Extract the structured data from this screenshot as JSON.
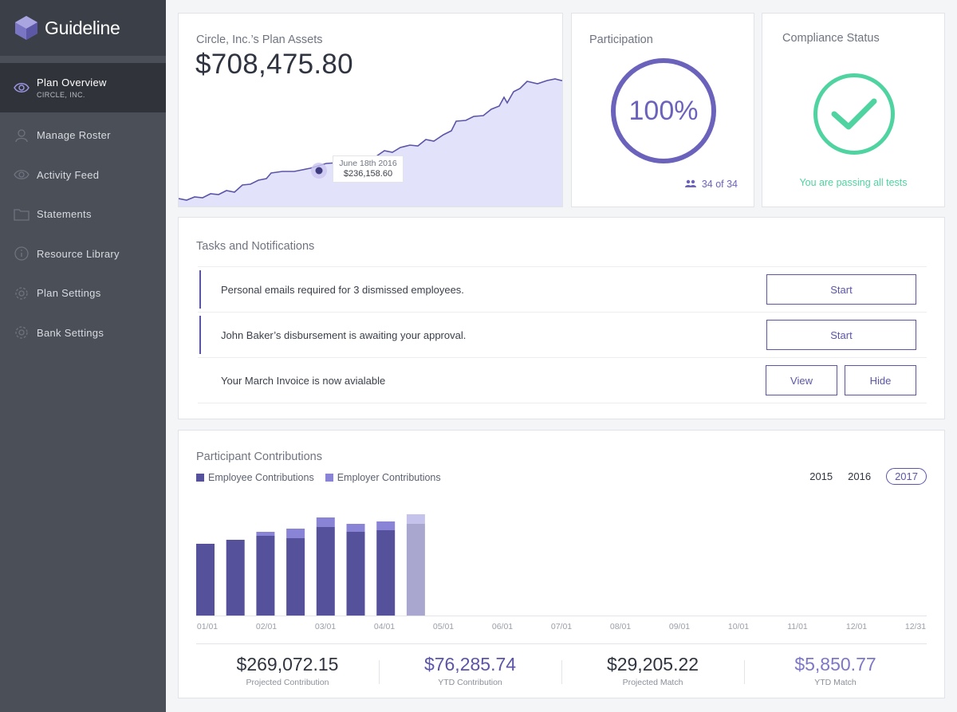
{
  "brand": {
    "name": "Guideline"
  },
  "sidebar": {
    "items": [
      {
        "label": "Plan Overview",
        "sub": "CIRCLE, INC.",
        "icon": "eye-icon",
        "active": true
      },
      {
        "label": "Manage Roster",
        "icon": "person-icon"
      },
      {
        "label": "Activity Feed",
        "icon": "eye-icon"
      },
      {
        "label": "Statements",
        "icon": "folder-icon"
      },
      {
        "label": "Resource Library",
        "icon": "info-icon"
      },
      {
        "label": "Plan Settings",
        "icon": "gear-icon"
      },
      {
        "label": "Bank Settings",
        "icon": "gear-icon"
      }
    ]
  },
  "assets": {
    "title": "Circle, Inc.’s Plan Assets",
    "value": "$708,475.80",
    "tooltip": {
      "date": "June 18th 2016",
      "value": "$236,158.60"
    }
  },
  "participation": {
    "title": "Participation",
    "percent": "100%",
    "percent_value": 1.0,
    "count": "34 of 34"
  },
  "compliance": {
    "title": "Compliance Status",
    "status": "You are passing all tests"
  },
  "tasks": {
    "title": "Tasks and Notifications",
    "items": [
      {
        "text": "Personal emails required for 3 dismissed employees.",
        "actions": [
          "Start"
        ]
      },
      {
        "text": "John Baker’s disbursement is awaiting your approval.",
        "actions": [
          "Start"
        ]
      },
      {
        "text": "Your March Invoice is now avialable",
        "actions": [
          "View",
          "Hide"
        ]
      }
    ]
  },
  "contributions": {
    "title": "Participant Contributions",
    "legend": [
      "Employee Contributions",
      "Employer Contributions"
    ],
    "years": [
      "2015",
      "2016",
      "2017"
    ],
    "selected_year": "2017",
    "stats": [
      {
        "value": "$269,072.15",
        "label": "Projected Contribution"
      },
      {
        "value": "$76,285.74",
        "label": "YTD Contribution"
      },
      {
        "value": "$29,205.22",
        "label": "Projected Match"
      },
      {
        "value": "$5,850.77",
        "label": "YTD Match"
      }
    ]
  },
  "colors": {
    "primary": "#5b55a8",
    "area_fill": "#e3e2fb",
    "employee": "#55529b",
    "employer": "#7d77c7",
    "success": "#4fd3a0",
    "sidebar": "#4a4f58"
  },
  "chart_data": [
    {
      "type": "area",
      "x": [
        "June 18th 2016"
      ],
      "series": [
        {
          "values": [
            236158.6
          ]
        }
      ],
      "title": "Circle, Inc.’s Plan Assets"
    },
    {
      "type": "bar",
      "title": "Participant Contributions",
      "tick_labels": [
        "01/01",
        "02/01",
        "03/01",
        "04/01",
        "05/01",
        "06/01",
        "07/01",
        "08/01",
        "09/01",
        "10/01",
        "11/01",
        "12/01",
        "12/31"
      ],
      "categories": [
        "1",
        "2",
        "3",
        "4",
        "5",
        "6",
        "7",
        "8"
      ],
      "series": [
        {
          "name": "Employee Contributions",
          "values": [
            90,
            95,
            100,
            97,
            111,
            105,
            107,
            115
          ]
        },
        {
          "name": "Employer Contributions",
          "values": [
            0,
            0,
            5,
            12,
            12,
            10,
            11,
            12
          ]
        }
      ],
      "ylim": [
        0,
        140
      ],
      "legend": "top-left"
    }
  ]
}
